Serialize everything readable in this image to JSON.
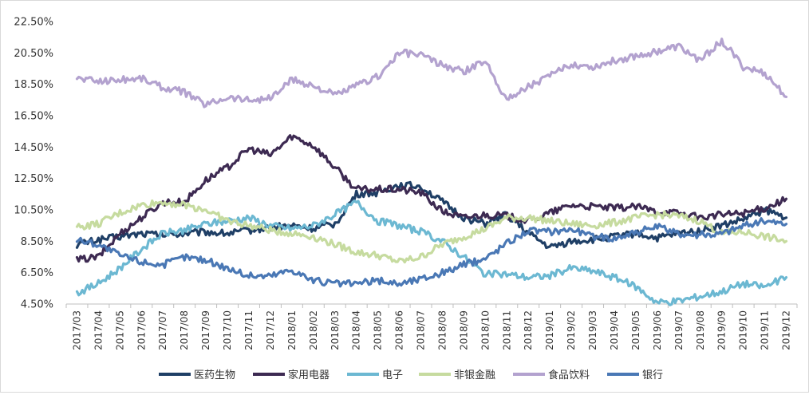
{
  "chart_data": {
    "type": "line",
    "title": "",
    "xlabel": "",
    "ylabel": "",
    "ylim": [
      4.5,
      22.5
    ],
    "y_ticks": [
      "4.50%",
      "6.50%",
      "8.50%",
      "10.50%",
      "12.50%",
      "14.50%",
      "16.50%",
      "18.50%",
      "20.50%",
      "22.50%"
    ],
    "categories": [
      "2017/03",
      "2017/04",
      "2017/05",
      "2017/06",
      "2017/07",
      "2017/08",
      "2017/09",
      "2017/10",
      "2017/11",
      "2017/12",
      "2018/01",
      "2018/02",
      "2018/03",
      "2018/04",
      "2018/05",
      "2018/06",
      "2018/07",
      "2018/08",
      "2018/09",
      "2018/10",
      "2018/11",
      "2018/12",
      "2019/01",
      "2019/02",
      "2019/03",
      "2019/04",
      "2019/05",
      "2019/06",
      "2019/07",
      "2019/08",
      "2019/09",
      "2019/10",
      "2019/11",
      "2019/12"
    ],
    "legend_position": "bottom",
    "series": [
      {
        "name": "医药生物",
        "color": "#1f3f66",
        "values": [
          8.3,
          8.6,
          8.8,
          9.0,
          8.9,
          9.0,
          9.1,
          9.0,
          9.2,
          9.4,
          9.5,
          9.3,
          9.6,
          11.5,
          11.6,
          12.1,
          12.0,
          11.0,
          10.0,
          9.6,
          10.2,
          9.0,
          8.1,
          8.5,
          8.6,
          8.8,
          9.0,
          8.7,
          9.0,
          9.2,
          9.5,
          9.9,
          10.5,
          10.0
        ]
      },
      {
        "name": "家用电器",
        "color": "#3d2a52",
        "values": [
          7.3,
          7.5,
          9.0,
          10.0,
          11.0,
          11.0,
          12.4,
          13.2,
          14.4,
          14.0,
          15.2,
          14.6,
          13.2,
          11.8,
          11.8,
          11.8,
          11.6,
          10.4,
          10.0,
          10.2,
          10.1,
          9.8,
          10.3,
          10.8,
          10.7,
          10.6,
          10.7,
          10.4,
          10.3,
          10.0,
          10.2,
          10.3,
          10.6,
          11.2
        ]
      },
      {
        "name": "电子",
        "color": "#6cb8d2",
        "values": [
          5.2,
          5.8,
          6.8,
          8.0,
          9.0,
          9.2,
          9.6,
          9.8,
          10.0,
          9.5,
          9.3,
          9.5,
          10.2,
          11.0,
          9.8,
          9.5,
          9.1,
          8.5,
          7.5,
          6.4,
          6.4,
          6.2,
          6.3,
          6.8,
          6.6,
          6.2,
          5.6,
          4.6,
          4.7,
          5.0,
          5.3,
          5.8,
          5.6,
          6.2
        ]
      },
      {
        "name": "非银金融",
        "color": "#c6db9f",
        "values": [
          9.4,
          9.6,
          10.3,
          10.8,
          11.0,
          10.8,
          10.5,
          9.8,
          9.5,
          9.2,
          9.0,
          8.8,
          8.3,
          7.8,
          7.6,
          7.2,
          7.5,
          8.3,
          8.8,
          9.3,
          10.0,
          10.0,
          9.8,
          9.6,
          9.5,
          9.7,
          10.0,
          10.2,
          10.1,
          9.8,
          9.0,
          9.1,
          8.8,
          8.5
        ]
      },
      {
        "name": "食品饮料",
        "color": "#b3a2cf",
        "values": [
          18.9,
          18.7,
          18.8,
          18.9,
          18.3,
          18.0,
          17.2,
          17.7,
          17.5,
          17.6,
          18.8,
          18.4,
          17.8,
          18.4,
          19.0,
          20.5,
          20.4,
          19.7,
          19.3,
          20.0,
          17.5,
          18.4,
          19.0,
          19.8,
          19.6,
          20.0,
          20.3,
          20.6,
          20.9,
          20.0,
          21.3,
          19.6,
          19.2,
          17.7
        ]
      },
      {
        "name": "银行",
        "color": "#4a78b5",
        "values": [
          8.6,
          8.3,
          7.6,
          7.2,
          7.0,
          7.5,
          7.3,
          6.8,
          6.3,
          6.3,
          6.7,
          6.0,
          5.8,
          5.8,
          6.0,
          5.8,
          6.1,
          6.5,
          7.0,
          7.4,
          8.4,
          9.2,
          9.1,
          9.3,
          8.8,
          8.7,
          9.1,
          9.4,
          9.0,
          8.9,
          9.0,
          9.5,
          9.8,
          9.6
        ]
      }
    ]
  }
}
